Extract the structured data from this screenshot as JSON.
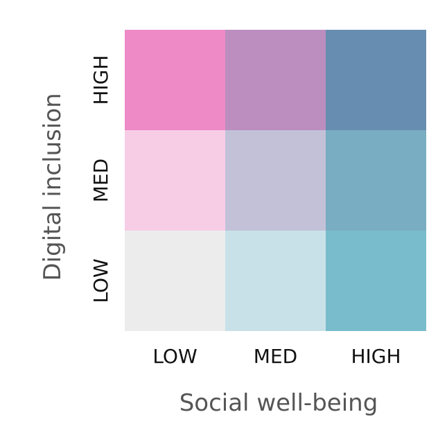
{
  "chart_data": {
    "type": "heatmap",
    "title": "",
    "xlabel": "Social well-being",
    "ylabel": "Digital inclusion",
    "x_categories": [
      "LOW",
      "MED",
      "HIGH"
    ],
    "y_categories": [
      "LOW",
      "MED",
      "HIGH"
    ],
    "cells": [
      {
        "x": "LOW",
        "y": "LOW",
        "color": "#ececec"
      },
      {
        "x": "MED",
        "y": "LOW",
        "color": "#c8e1e8"
      },
      {
        "x": "HIGH",
        "y": "LOW",
        "color": "#79bccb"
      },
      {
        "x": "LOW",
        "y": "MED",
        "color": "#f7cde6"
      },
      {
        "x": "MED",
        "y": "MED",
        "color": "#c2c1d8"
      },
      {
        "x": "HIGH",
        "y": "MED",
        "color": "#79adc2"
      },
      {
        "x": "LOW",
        "y": "HIGH",
        "color": "#ee8ac6"
      },
      {
        "x": "MED",
        "y": "HIGH",
        "color": "#bb8ebf"
      },
      {
        "x": "HIGH",
        "y": "HIGH",
        "color": "#678db0"
      }
    ],
    "grid": false,
    "legend": "none"
  }
}
